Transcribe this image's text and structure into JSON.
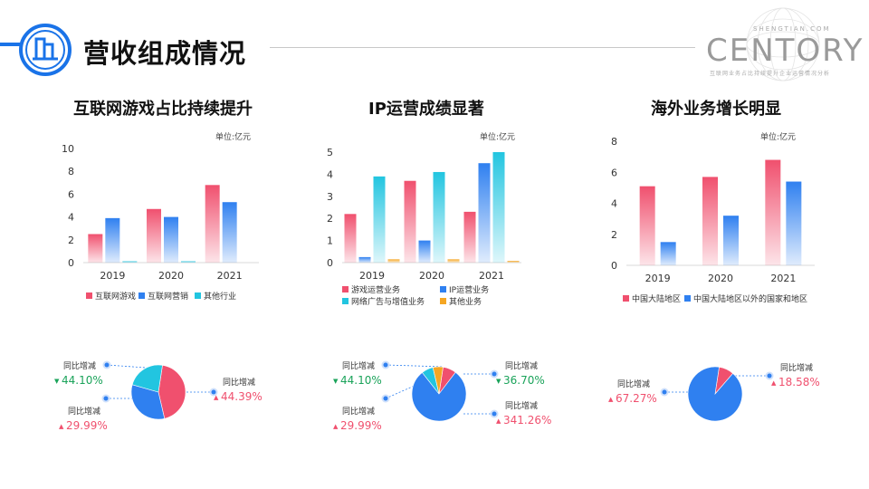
{
  "page": {
    "title": "营收组成情况",
    "brand": {
      "name": "CENTORY",
      "domain": "SHENGTIAN.COM",
      "tagline": "互联网业务占比持续提升企业运营情况分析"
    }
  },
  "colors": {
    "red": "#f0506e",
    "blue": "#2f80f0",
    "cyan": "#22c5e0",
    "orange": "#f5a623",
    "green": "#1aa35a",
    "accent": "#1a73e8"
  },
  "sections": [
    {
      "title": "互联网游戏占比持续提升",
      "chart_data": {
        "type": "bar",
        "unit_label": "单位:亿元",
        "categories": [
          "2019",
          "2020",
          "2021"
        ],
        "ylim": [
          0,
          10
        ],
        "yticks": [
          "0",
          "2",
          "4",
          "6",
          "8",
          "10"
        ],
        "series": [
          {
            "name": "互联网游戏",
            "color": "#f0506e",
            "values": [
              2.5,
              4.7,
              6.8
            ]
          },
          {
            "name": "互联网营销",
            "color": "#2f80f0",
            "values": [
              3.9,
              4.0,
              5.3
            ]
          },
          {
            "name": "其他行业",
            "color": "#22c5e0",
            "values": [
              0.08,
              0.08,
              0.0
            ]
          }
        ]
      },
      "pie": {
        "slices": [
          {
            "name": "互联网游戏",
            "value": 0.44,
            "color": "#f0506e"
          },
          {
            "name": "互联网营销",
            "value": 0.33,
            "color": "#2f80f0"
          },
          {
            "name": "其他行业",
            "value": 0.23,
            "color": "#22c5e0"
          }
        ],
        "callouts": [
          {
            "label": "同比增减",
            "value": "44.10%",
            "trend": "down"
          },
          {
            "label": "同比增减",
            "value": "29.99%",
            "trend": "up"
          },
          {
            "label": "同比增减",
            "value": "44.39%",
            "trend": "up"
          }
        ]
      }
    },
    {
      "title": "IP运营成绩显著",
      "chart_data": {
        "type": "bar",
        "unit_label": "单位:亿元",
        "categories": [
          "2019",
          "2020",
          "2021"
        ],
        "ylim": [
          0,
          5
        ],
        "yticks": [
          "0",
          "1",
          "2",
          "3",
          "4",
          "5"
        ],
        "series": [
          {
            "name": "游戏运营业务",
            "color": "#f0506e",
            "values": [
              2.2,
              3.7,
              2.3
            ]
          },
          {
            "name": "IP运营业务",
            "color": "#2f80f0",
            "values": [
              0.25,
              1.0,
              4.5
            ]
          },
          {
            "name": "网络广告与增值业务",
            "color": "#22c5e0",
            "values": [
              3.9,
              4.1,
              5.0
            ]
          },
          {
            "name": "其他业务",
            "color": "#f5a623",
            "values": [
              0.15,
              0.15,
              0.08
            ]
          }
        ]
      },
      "pie": {
        "slices": [
          {
            "name": "游戏运营业务",
            "value": 0.08,
            "color": "#f0506e"
          },
          {
            "name": "IP运营业务",
            "value": 0.79,
            "color": "#2f80f0"
          },
          {
            "name": "网络广告与增值业务",
            "value": 0.07,
            "color": "#22c5e0"
          },
          {
            "name": "其他业务",
            "value": 0.06,
            "color": "#f5a623"
          }
        ],
        "callouts": [
          {
            "label": "同比增减",
            "value": "44.10%",
            "trend": "down"
          },
          {
            "label": "同比增减",
            "value": "29.99%",
            "trend": "up"
          },
          {
            "label": "同比增减",
            "value": "36.70%",
            "trend": "down"
          },
          {
            "label": "同比增减",
            "value": "341.26%",
            "trend": "up"
          }
        ]
      }
    },
    {
      "title": "海外业务增长明显",
      "chart_data": {
        "type": "bar",
        "unit_label": "单位:亿元",
        "categories": [
          "2019",
          "2020",
          "2021"
        ],
        "ylim": [
          0,
          8
        ],
        "yticks": [
          "0",
          "2",
          "4",
          "6",
          "8"
        ],
        "series": [
          {
            "name": "中国大陆地区",
            "color": "#f0506e",
            "values": [
              5.1,
              5.7,
              6.8
            ]
          },
          {
            "name": "中国大陆地区以外的国家和地区",
            "color": "#2f80f0",
            "values": [
              1.5,
              3.2,
              5.4
            ]
          }
        ]
      },
      "pie": {
        "slices": [
          {
            "name": "中国大陆地区",
            "value": 0.09,
            "color": "#f0506e"
          },
          {
            "name": "中国大陆地区以外的国家和地区",
            "value": 0.91,
            "color": "#2f80f0"
          }
        ],
        "callouts": [
          {
            "label": "同比增减",
            "value": "67.27%",
            "trend": "up"
          },
          {
            "label": "同比增减",
            "value": "18.58%",
            "trend": "up"
          }
        ]
      }
    }
  ]
}
